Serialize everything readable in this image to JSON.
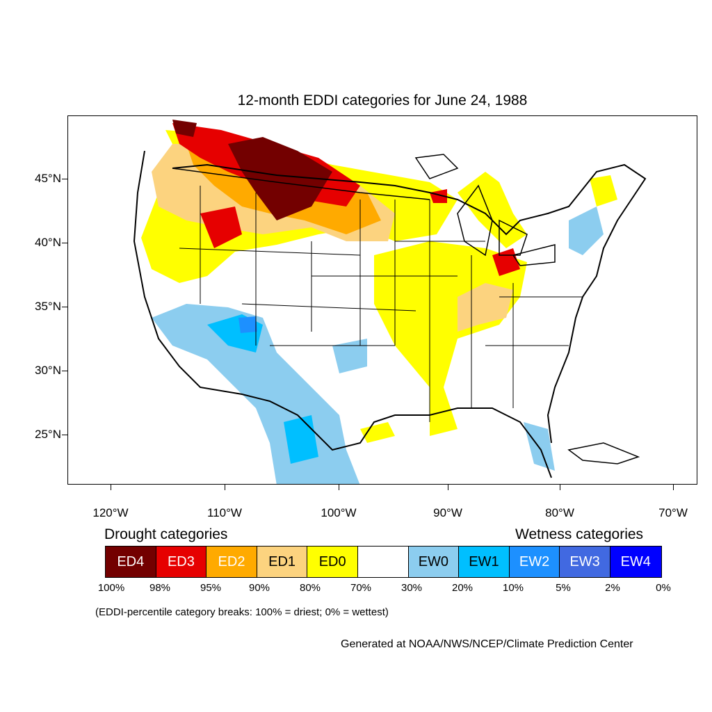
{
  "title": "12-month EDDI categories for June 24, 1988",
  "lat_labels": [
    "45°N",
    "40°N",
    "35°N",
    "30°N",
    "25°N"
  ],
  "lon_labels": [
    "120°W",
    "110°W",
    "100°W",
    "90°W",
    "80°W",
    "70°W"
  ],
  "legend": {
    "drought_heading": "Drought categories",
    "wetness_heading": "Wetness categories",
    "boxes": [
      {
        "label": "ED4",
        "color": "#730000",
        "text_color": "#ffffff"
      },
      {
        "label": "ED3",
        "color": "#e60000",
        "text_color": "#ffffff"
      },
      {
        "label": "ED2",
        "color": "#ffaa00",
        "text_color": "#ffffff"
      },
      {
        "label": "ED1",
        "color": "#fcd37f",
        "text_color": "#000000"
      },
      {
        "label": "ED0",
        "color": "#ffff00",
        "text_color": "#000000"
      },
      {
        "label": "",
        "color": "#ffffff",
        "text_color": "#000000"
      },
      {
        "label": "EW0",
        "color": "#8ccdef",
        "text_color": "#000000"
      },
      {
        "label": "EW1",
        "color": "#00bfff",
        "text_color": "#000000"
      },
      {
        "label": "EW2",
        "color": "#1d90ff",
        "text_color": "#ffffff"
      },
      {
        "label": "EW3",
        "color": "#4169e1",
        "text_color": "#ffffff"
      },
      {
        "label": "EW4",
        "color": "#0000ff",
        "text_color": "#ffffff"
      }
    ],
    "percentiles": [
      "100%",
      "98%",
      "95%",
      "90%",
      "80%",
      "70%",
      "30%",
      "20%",
      "10%",
      "5%",
      "2%",
      "0%"
    ]
  },
  "note": "(EDDI-percentile category breaks: 100% = driest; 0% = wettest)",
  "credit": "Generated at NOAA/NWS/NCEP/Climate Prediction Center",
  "colors": {
    "ED4": "#730000",
    "ED3": "#e60000",
    "ED2": "#ffaa00",
    "ED1": "#fcd37f",
    "ED0": "#ffff00",
    "EW0": "#8ccdef",
    "EW1": "#00bfff",
    "EW2": "#1d90ff"
  }
}
